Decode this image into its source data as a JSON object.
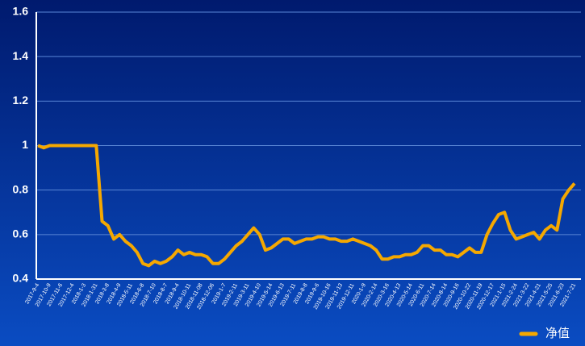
{
  "chart_data": {
    "type": "line",
    "categories": [
      "2017-9-4",
      null,
      "2017-10-9",
      null,
      "2017-11-6",
      null,
      "2017-12-4",
      null,
      "2018-1-3",
      null,
      "2018-1-31",
      null,
      "2018-3-8",
      null,
      "2018-4-9",
      null,
      "2018-5-11",
      null,
      "2018-6-8",
      null,
      "2018-7-10",
      null,
      "2018-8-7",
      null,
      "2018-9-4",
      null,
      "2018-10-11",
      null,
      "2018-11-08",
      null,
      "2018-12-06",
      null,
      "2019-1-7",
      null,
      "2019-2-11",
      null,
      "2019-3-11",
      null,
      "2019-4-10",
      null,
      "2019-5-14",
      null,
      "2019-6-13",
      null,
      "2019-7-11",
      null,
      "2019-8-8",
      null,
      "2019-9-6",
      null,
      "2019-10-16",
      null,
      "2019-11-13",
      null,
      "2019-12-11",
      null,
      "2020-1-9",
      null,
      "2020-2-14",
      null,
      "2020-3-16",
      null,
      "2020-4-13",
      null,
      "2020-5-14",
      null,
      "2020-6-11",
      null,
      "2020-7-14",
      null,
      "2020-8-14",
      null,
      "2020-9-16",
      null,
      "2020-10-22",
      null,
      "2020-11-19",
      null,
      "2020-12-17",
      null,
      "2021-1-15",
      null,
      "2021-2-24",
      null,
      "2021-3-22",
      null,
      "2021-4-21",
      null,
      "2021-5-25",
      null,
      "2021-6-23",
      null,
      "2021-7-21"
    ],
    "series": [
      {
        "name": "净值",
        "color": "#f5a800",
        "values": [
          1.0,
          0.99,
          1.0,
          1.0,
          1.0,
          1.0,
          1.0,
          1.0,
          1.0,
          1.0,
          1.0,
          0.66,
          0.64,
          0.58,
          0.6,
          0.57,
          0.55,
          0.52,
          0.47,
          0.46,
          0.48,
          0.47,
          0.48,
          0.5,
          0.53,
          0.51,
          0.52,
          0.51,
          0.51,
          0.5,
          0.47,
          0.47,
          0.49,
          0.52,
          0.55,
          0.57,
          0.6,
          0.63,
          0.6,
          0.53,
          0.54,
          0.56,
          0.58,
          0.58,
          0.56,
          0.57,
          0.58,
          0.58,
          0.59,
          0.59,
          0.58,
          0.58,
          0.57,
          0.57,
          0.58,
          0.57,
          0.56,
          0.55,
          0.53,
          0.49,
          0.49,
          0.5,
          0.5,
          0.51,
          0.51,
          0.52,
          0.55,
          0.55,
          0.53,
          0.53,
          0.51,
          0.51,
          0.5,
          0.52,
          0.54,
          0.52,
          0.52,
          0.6,
          0.65,
          0.69,
          0.7,
          0.62,
          0.58,
          0.59,
          0.6,
          0.61,
          0.58,
          0.62,
          0.64,
          0.62,
          0.76,
          0.8,
          0.83
        ]
      }
    ],
    "ylim": [
      0.4,
      1.6
    ],
    "yticks": [
      0.4,
      0.6,
      0.8,
      1,
      1.2,
      1.4,
      1.6
    ],
    "grid": true,
    "legend": "bottom-right"
  }
}
